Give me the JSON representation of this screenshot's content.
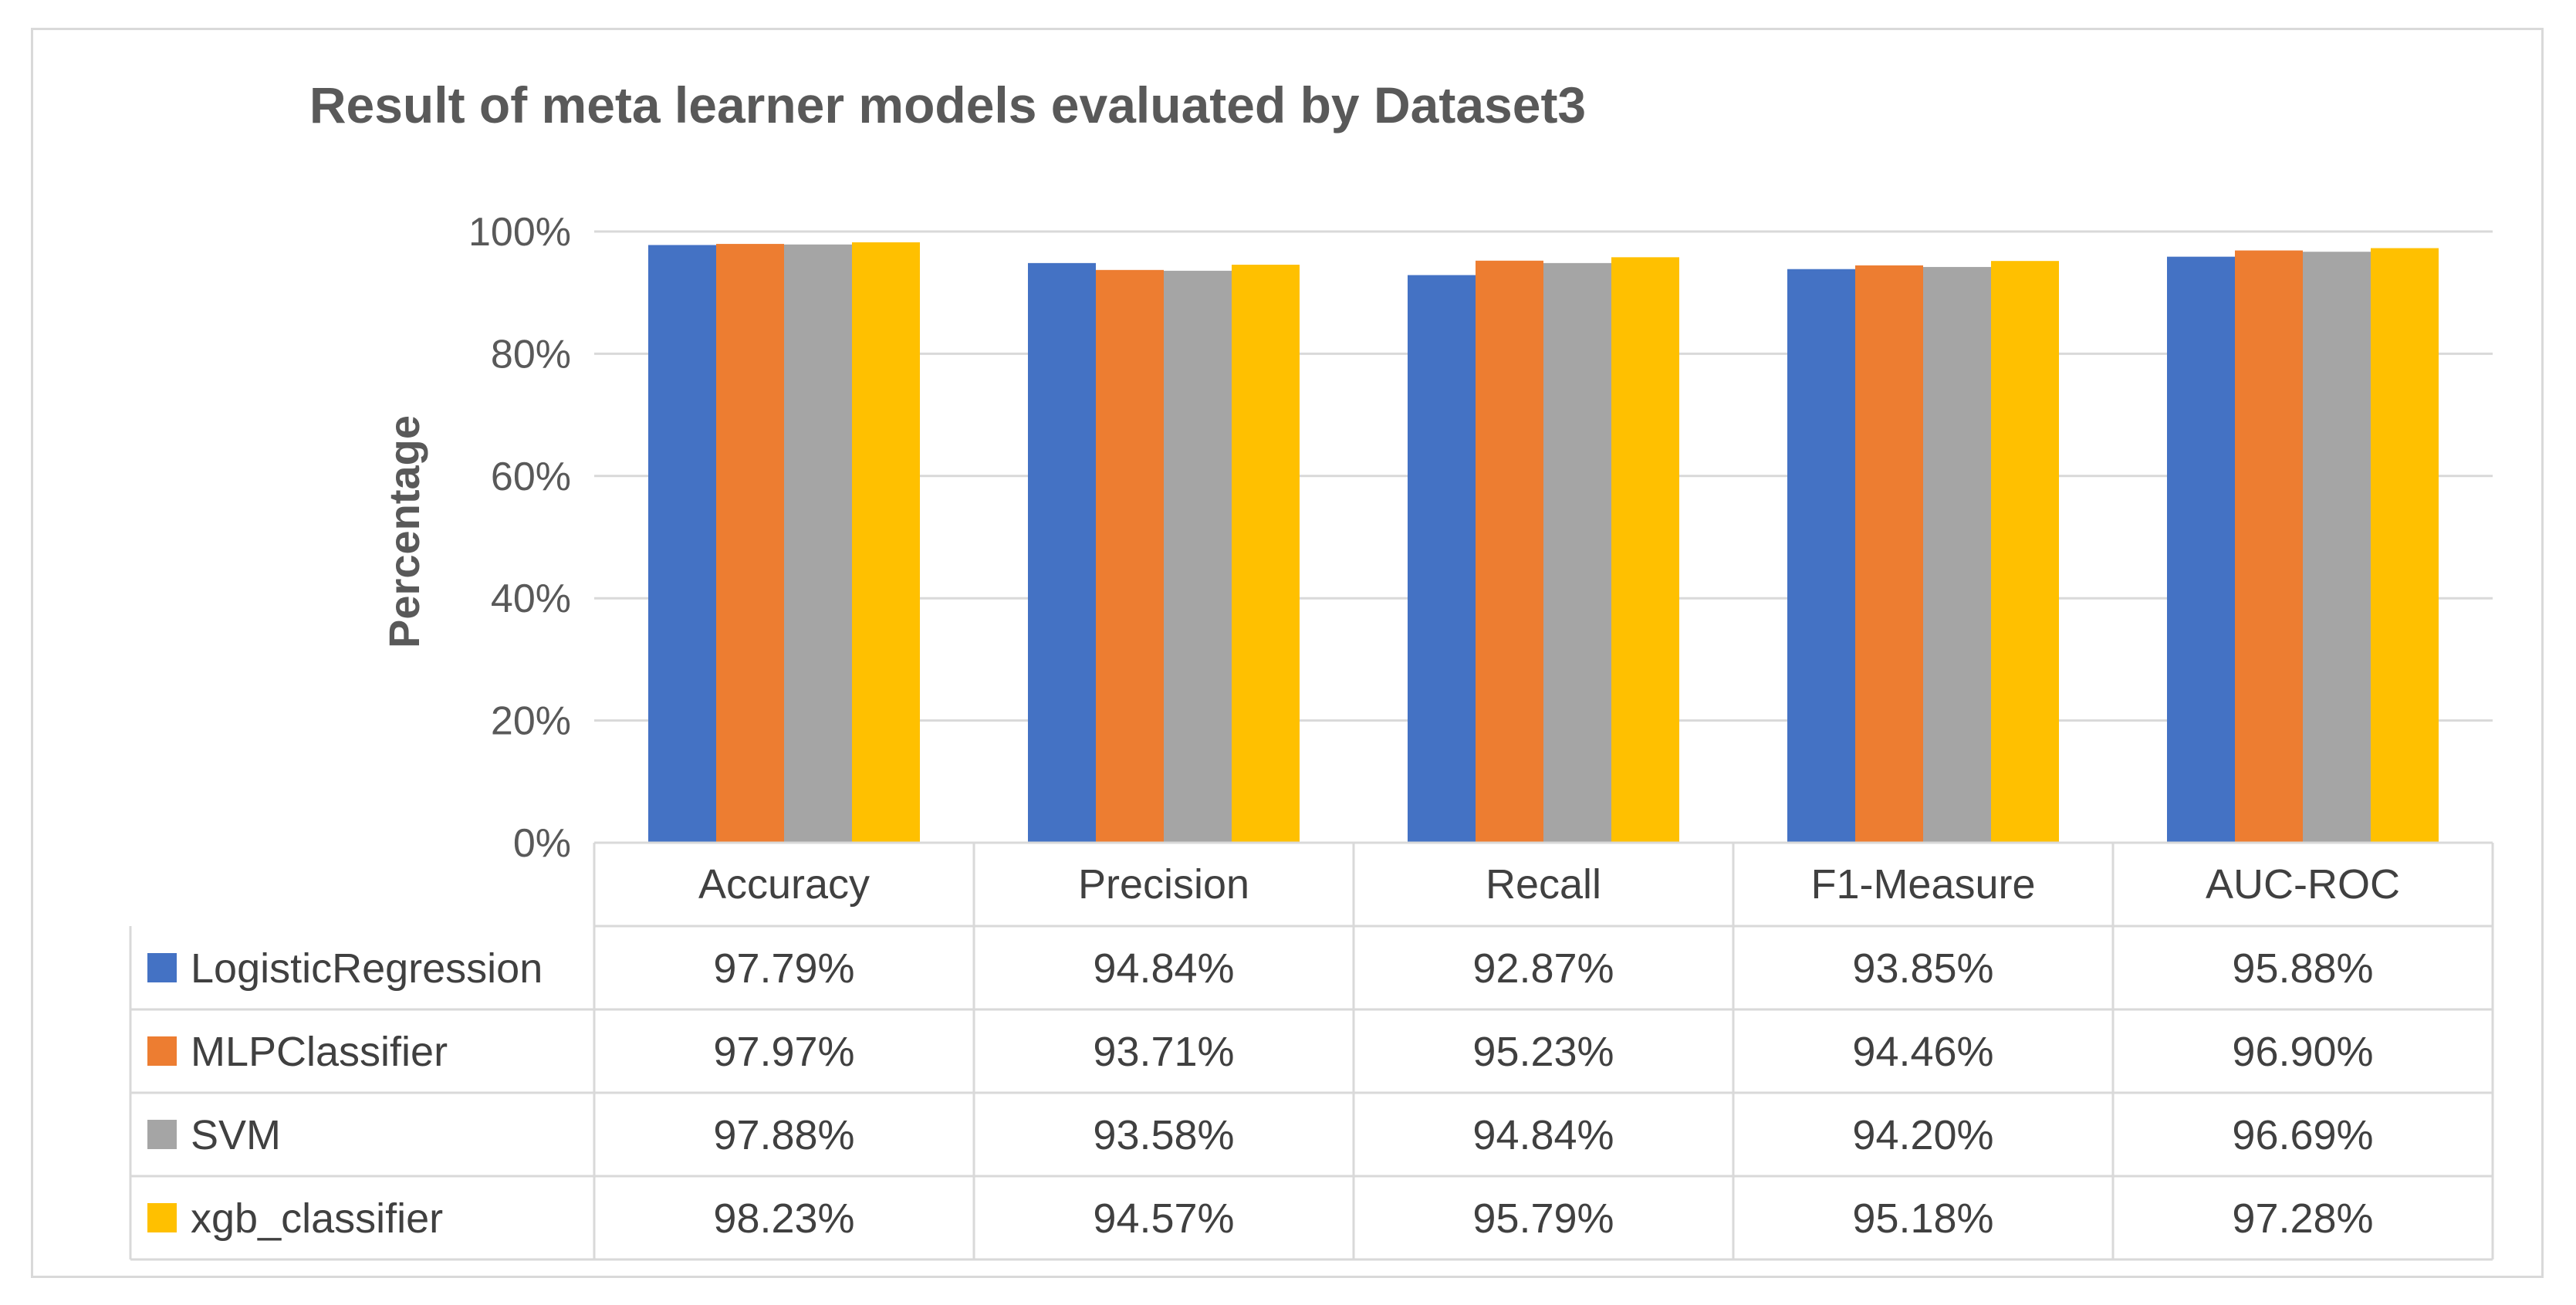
{
  "chart_data": {
    "type": "bar",
    "title": "Result of meta learner models evaluated by Dataset3",
    "xlabel": "",
    "ylabel": "Percentage",
    "ylim": [
      0,
      100
    ],
    "yticks": [
      "0%",
      "20%",
      "40%",
      "60%",
      "80%",
      "100%"
    ],
    "grid": true,
    "legend": "data-table-below",
    "categories": [
      "Accuracy",
      "Precision",
      "Recall",
      "F1-Measure",
      "AUC-ROC"
    ],
    "series": [
      {
        "name": "LogisticRegression",
        "color": "#4472c4",
        "values": [
          97.79,
          94.84,
          92.87,
          93.85,
          95.88
        ],
        "labels": [
          "97.79%",
          "94.84%",
          "92.87%",
          "93.85%",
          "95.88%"
        ]
      },
      {
        "name": "MLPClassifier",
        "color": "#ed7d31",
        "values": [
          97.97,
          93.71,
          95.23,
          94.46,
          96.9
        ],
        "labels": [
          "97.97%",
          "93.71%",
          "95.23%",
          "94.46%",
          "96.90%"
        ]
      },
      {
        "name": "SVM",
        "color": "#a5a5a5",
        "values": [
          97.88,
          93.58,
          94.84,
          94.2,
          96.69
        ],
        "labels": [
          "97.88%",
          "93.58%",
          "94.84%",
          "94.20%",
          "96.69%"
        ]
      },
      {
        "name": "xgb_classifier",
        "color": "#ffc000",
        "values": [
          98.23,
          94.57,
          95.79,
          95.18,
          97.28
        ],
        "labels": [
          "98.23%",
          "94.57%",
          "95.79%",
          "95.18%",
          "97.28%"
        ]
      }
    ]
  }
}
